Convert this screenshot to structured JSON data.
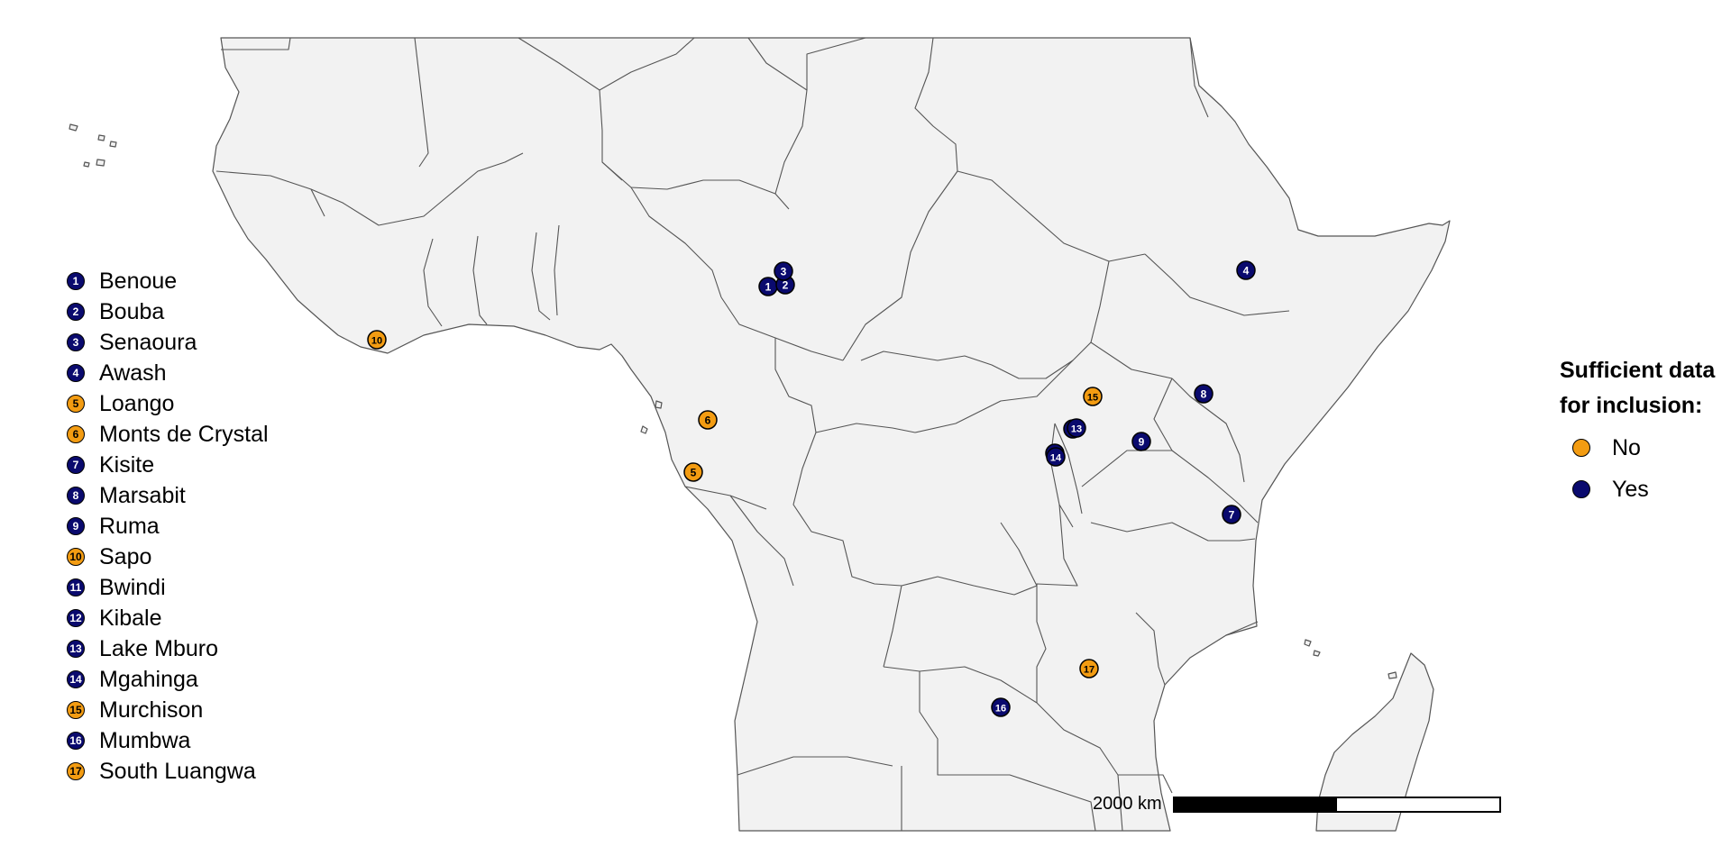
{
  "colors": {
    "no": "#f39c12",
    "yes": "#0a0a6e",
    "land": "#f2f2f2",
    "border": "#555555",
    "background": "#ffffff"
  },
  "sites": [
    {
      "id": "1",
      "name": "Benoue",
      "sufficient": "yes"
    },
    {
      "id": "2",
      "name": "Bouba",
      "sufficient": "yes"
    },
    {
      "id": "3",
      "name": "Senaoura",
      "sufficient": "yes"
    },
    {
      "id": "4",
      "name": "Awash",
      "sufficient": "yes"
    },
    {
      "id": "5",
      "name": "Loango",
      "sufficient": "no"
    },
    {
      "id": "6",
      "name": "Monts de Crystal",
      "sufficient": "no"
    },
    {
      "id": "7",
      "name": "Kisite",
      "sufficient": "yes"
    },
    {
      "id": "8",
      "name": "Marsabit",
      "sufficient": "yes"
    },
    {
      "id": "9",
      "name": "Ruma",
      "sufficient": "yes"
    },
    {
      "id": "10",
      "name": "Sapo",
      "sufficient": "no"
    },
    {
      "id": "11",
      "name": "Bwindi",
      "sufficient": "yes"
    },
    {
      "id": "12",
      "name": "Kibale",
      "sufficient": "yes"
    },
    {
      "id": "13",
      "name": "Lake Mburo",
      "sufficient": "yes"
    },
    {
      "id": "14",
      "name": "Mgahinga",
      "sufficient": "yes"
    },
    {
      "id": "15",
      "name": "Murchison",
      "sufficient": "no"
    },
    {
      "id": "16",
      "name": "Mumbwa",
      "sufficient": "yes"
    },
    {
      "id": "17",
      "name": "South Luangwa",
      "sufficient": "no"
    }
  ],
  "legend": {
    "title_line1": "Sufficient data",
    "title_line2": "for inclusion:",
    "no_label": "No",
    "yes_label": "Yes"
  },
  "scale_bar": {
    "label": "2000 km"
  }
}
